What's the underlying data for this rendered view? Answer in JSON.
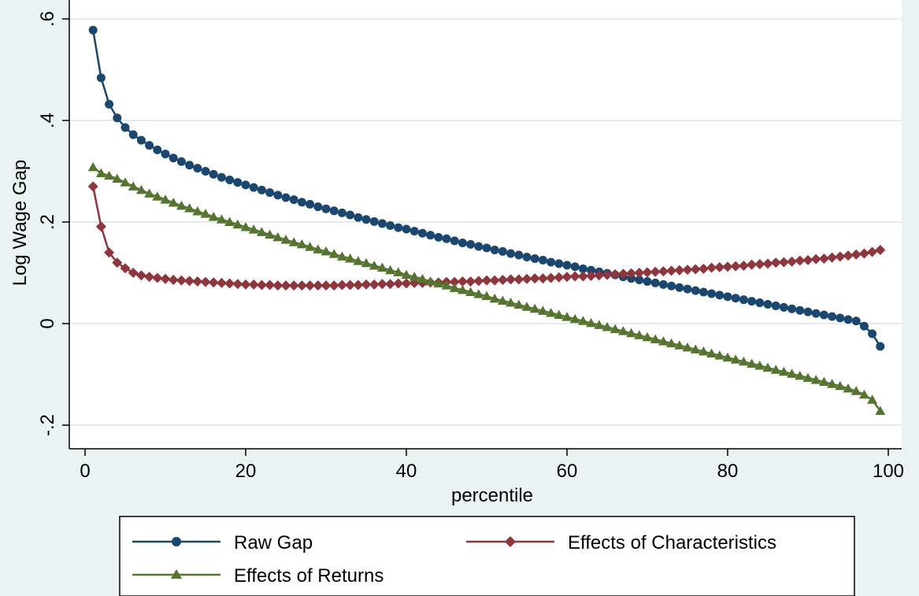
{
  "chart_data": {
    "type": "line",
    "title": "",
    "xlabel": "percentile",
    "ylabel": "Log Wage Gap",
    "xlim": [
      0,
      100
    ],
    "ylim": [
      -0.2,
      0.6
    ],
    "x_ticks": [
      {
        "value": 0,
        "label": "0"
      },
      {
        "value": 20,
        "label": "20"
      },
      {
        "value": 40,
        "label": "40"
      },
      {
        "value": 60,
        "label": "60"
      },
      {
        "value": 80,
        "label": "80"
      },
      {
        "value": 100,
        "label": "100"
      }
    ],
    "y_ticks": [
      {
        "value": -0.2,
        "label": "-.2"
      },
      {
        "value": 0,
        "label": "0"
      },
      {
        "value": 0.2,
        "label": ".2"
      },
      {
        "value": 0.4,
        "label": ".4"
      },
      {
        "value": 0.6,
        "label": ".6"
      }
    ],
    "grid": true,
    "legend_position": "bottom",
    "x": [
      1,
      2,
      3,
      4,
      5,
      6,
      7,
      8,
      9,
      10,
      11,
      12,
      13,
      14,
      15,
      16,
      17,
      18,
      19,
      20,
      21,
      22,
      23,
      24,
      25,
      26,
      27,
      28,
      29,
      30,
      31,
      32,
      33,
      34,
      35,
      36,
      37,
      38,
      39,
      40,
      41,
      42,
      43,
      44,
      45,
      46,
      47,
      48,
      49,
      50,
      51,
      52,
      53,
      54,
      55,
      56,
      57,
      58,
      59,
      60,
      61,
      62,
      63,
      64,
      65,
      66,
      67,
      68,
      69,
      70,
      71,
      72,
      73,
      74,
      75,
      76,
      77,
      78,
      79,
      80,
      81,
      82,
      83,
      84,
      85,
      86,
      87,
      88,
      89,
      90,
      91,
      92,
      93,
      94,
      95,
      96,
      97,
      98,
      99
    ],
    "series": [
      {
        "name": "Raw Gap",
        "color": "#1a476f",
        "marker": "circle",
        "values": [
          0.578,
          0.484,
          0.432,
          0.405,
          0.386,
          0.372,
          0.361,
          0.351,
          0.342,
          0.334,
          0.326,
          0.319,
          0.312,
          0.306,
          0.3,
          0.294,
          0.288,
          0.283,
          0.278,
          0.273,
          0.268,
          0.263,
          0.258,
          0.253,
          0.248,
          0.244,
          0.239,
          0.235,
          0.23,
          0.226,
          0.222,
          0.218,
          0.214,
          0.209,
          0.205,
          0.201,
          0.197,
          0.193,
          0.189,
          0.186,
          0.182,
          0.178,
          0.174,
          0.17,
          0.167,
          0.163,
          0.159,
          0.156,
          0.152,
          0.149,
          0.145,
          0.142,
          0.138,
          0.135,
          0.131,
          0.128,
          0.125,
          0.121,
          0.118,
          0.115,
          0.112,
          0.108,
          0.105,
          0.102,
          0.099,
          0.096,
          0.092,
          0.089,
          0.086,
          0.083,
          0.08,
          0.077,
          0.074,
          0.071,
          0.068,
          0.065,
          0.062,
          0.059,
          0.056,
          0.053,
          0.05,
          0.047,
          0.044,
          0.041,
          0.038,
          0.035,
          0.032,
          0.029,
          0.026,
          0.023,
          0.02,
          0.017,
          0.014,
          0.011,
          0.008,
          0.005,
          -0.005,
          -0.02,
          -0.045
        ]
      },
      {
        "name": "Effects of Characteristics",
        "color": "#90353b",
        "marker": "diamond",
        "values": [
          0.27,
          0.191,
          0.14,
          0.12,
          0.109,
          0.1,
          0.095,
          0.092,
          0.09,
          0.088,
          0.086,
          0.085,
          0.084,
          0.083,
          0.082,
          0.081,
          0.08,
          0.079,
          0.078,
          0.077,
          0.077,
          0.076,
          0.076,
          0.075,
          0.075,
          0.075,
          0.075,
          0.075,
          0.075,
          0.075,
          0.075,
          0.076,
          0.076,
          0.076,
          0.077,
          0.077,
          0.078,
          0.078,
          0.079,
          0.079,
          0.08,
          0.08,
          0.081,
          0.081,
          0.082,
          0.082,
          0.083,
          0.083,
          0.084,
          0.085,
          0.085,
          0.086,
          0.087,
          0.087,
          0.088,
          0.089,
          0.089,
          0.09,
          0.091,
          0.092,
          0.093,
          0.093,
          0.094,
          0.095,
          0.096,
          0.097,
          0.098,
          0.099,
          0.1,
          0.101,
          0.102,
          0.103,
          0.104,
          0.105,
          0.106,
          0.107,
          0.108,
          0.11,
          0.111,
          0.112,
          0.113,
          0.114,
          0.116,
          0.117,
          0.118,
          0.12,
          0.121,
          0.122,
          0.124,
          0.125,
          0.127,
          0.128,
          0.13,
          0.132,
          0.134,
          0.136,
          0.138,
          0.141,
          0.145
        ]
      },
      {
        "name": "Effects of Returns",
        "color": "#55752f",
        "marker": "triangle",
        "values": [
          0.308,
          0.296,
          0.291,
          0.285,
          0.278,
          0.27,
          0.263,
          0.256,
          0.25,
          0.244,
          0.238,
          0.232,
          0.227,
          0.221,
          0.216,
          0.21,
          0.205,
          0.2,
          0.195,
          0.19,
          0.185,
          0.18,
          0.175,
          0.17,
          0.165,
          0.16,
          0.156,
          0.151,
          0.146,
          0.142,
          0.137,
          0.132,
          0.128,
          0.123,
          0.119,
          0.114,
          0.11,
          0.105,
          0.101,
          0.096,
          0.092,
          0.088,
          0.083,
          0.079,
          0.075,
          0.07,
          0.066,
          0.062,
          0.058,
          0.054,
          0.049,
          0.045,
          0.041,
          0.037,
          0.033,
          0.029,
          0.025,
          0.021,
          0.017,
          0.013,
          0.009,
          0.005,
          0.001,
          -0.003,
          -0.007,
          -0.011,
          -0.015,
          -0.019,
          -0.023,
          -0.027,
          -0.031,
          -0.035,
          -0.039,
          -0.043,
          -0.047,
          -0.051,
          -0.055,
          -0.059,
          -0.063,
          -0.067,
          -0.071,
          -0.075,
          -0.079,
          -0.083,
          -0.087,
          -0.091,
          -0.095,
          -0.099,
          -0.103,
          -0.107,
          -0.111,
          -0.115,
          -0.119,
          -0.123,
          -0.128,
          -0.133,
          -0.14,
          -0.15,
          -0.172
        ]
      }
    ]
  }
}
